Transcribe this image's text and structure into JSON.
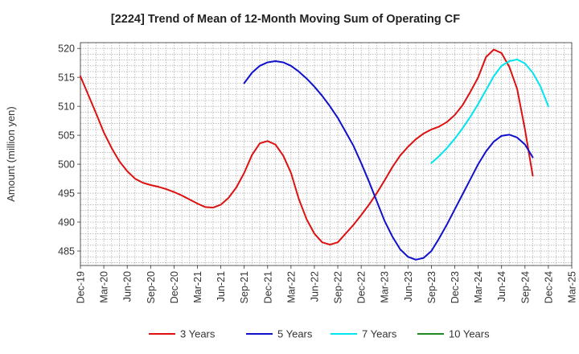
{
  "chart_data": {
    "type": "line",
    "title": "[2224]  Trend of Mean of 12-Month Moving Sum of Operating CF",
    "ylabel": "Amount (million yen)",
    "xlabel": "",
    "ylim": [
      482.5,
      521.0
    ],
    "yticks": [
      485,
      490,
      495,
      500,
      505,
      510,
      515,
      520
    ],
    "x_start": "2019-12",
    "x_end": "2025-03",
    "xticks": [
      "Dec-19",
      "Mar-20",
      "Jun-20",
      "Sep-20",
      "Dec-20",
      "Mar-21",
      "Jun-21",
      "Sep-21",
      "Dec-21",
      "Mar-22",
      "Jun-22",
      "Sep-22",
      "Dec-22",
      "Mar-23",
      "Jun-23",
      "Sep-23",
      "Dec-23",
      "Mar-24",
      "Jun-24",
      "Sep-24",
      "Dec-24",
      "Mar-25"
    ],
    "grid": true,
    "legend_position": "bottom",
    "series": [
      {
        "name": "3 Years",
        "color": "#dd1111",
        "start": "2019-12",
        "values": [
          515.2,
          512.0,
          508.8,
          505.5,
          502.8,
          500.5,
          498.8,
          497.5,
          496.8,
          496.4,
          496.1,
          495.7,
          495.2,
          494.6,
          493.9,
          493.2,
          492.6,
          492.5,
          493.0,
          494.2,
          496.0,
          498.5,
          501.6,
          503.6,
          504.0,
          503.4,
          501.5,
          498.5,
          494.0,
          490.5,
          488.0,
          486.5,
          486.1,
          486.5,
          488.0,
          489.5,
          491.2,
          493.0,
          495.0,
          497.2,
          499.5,
          501.5,
          503.0,
          504.3,
          505.3,
          506.0,
          506.5,
          507.3,
          508.5,
          510.2,
          512.5,
          515.0,
          518.5,
          519.8,
          519.2,
          516.8,
          513.0,
          506.0,
          498.0
        ]
      },
      {
        "name": "5 Years",
        "color": "#1111cc",
        "start": "2021-09",
        "values": [
          514.0,
          515.8,
          517.0,
          517.6,
          517.8,
          517.6,
          517.0,
          516.0,
          514.8,
          513.4,
          511.8,
          510.0,
          508.0,
          505.6,
          503.2,
          500.2,
          497.0,
          493.6,
          490.2,
          487.5,
          485.3,
          484.0,
          483.5,
          483.8,
          485.0,
          487.2,
          489.6,
          492.2,
          494.8,
          497.4,
          500.0,
          502.2,
          503.9,
          504.9,
          505.1,
          504.6,
          503.4,
          501.2
        ]
      },
      {
        "name": "7 Years",
        "color": "#00e5ee",
        "start": "2023-09",
        "values": [
          500.2,
          501.4,
          502.8,
          504.4,
          506.2,
          508.2,
          510.4,
          512.8,
          515.2,
          517.0,
          517.8,
          518.1,
          517.4,
          515.8,
          513.4,
          510.0
        ]
      },
      {
        "name": "10 Years",
        "color": "#228822",
        "start": "2019-12",
        "values": []
      }
    ]
  }
}
